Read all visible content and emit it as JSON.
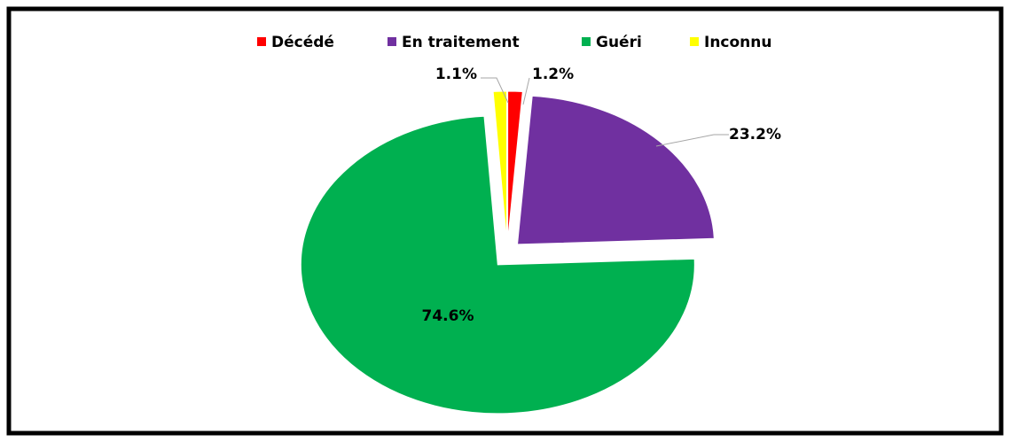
{
  "chart_data": {
    "type": "pie",
    "categories": [
      "Décédé",
      "En traitement",
      "Guéri",
      "Inconnu"
    ],
    "values": [
      1.2,
      23.2,
      74.6,
      1.1
    ],
    "value_labels": [
      "1.2%",
      "23.2%",
      "74.6%",
      "1.1%"
    ],
    "colors": [
      "#ff0000",
      "#7030a0",
      "#00b050",
      "#ffff00"
    ],
    "legend": "top"
  }
}
